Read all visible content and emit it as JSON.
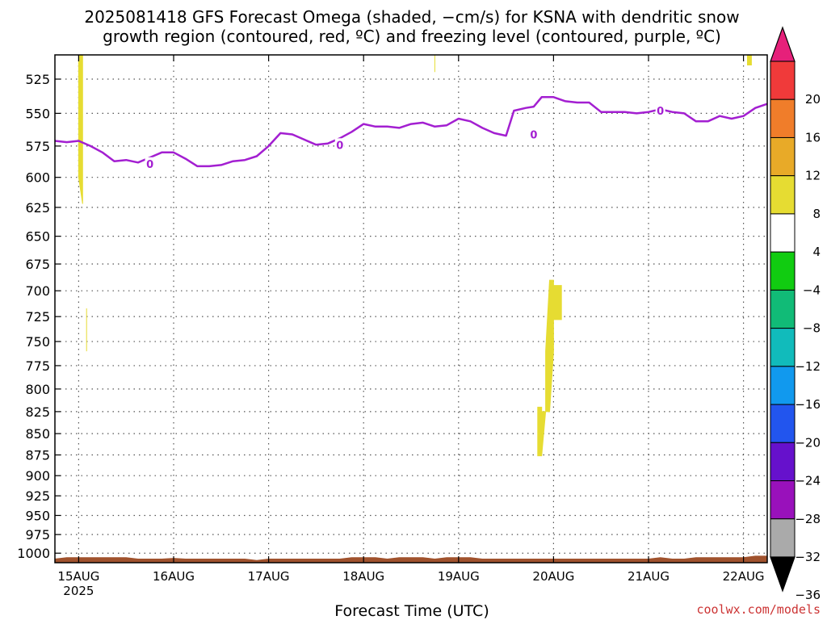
{
  "title": {
    "line1": "2025081418 GFS Forecast Omega (shaded, −cm/s) for KSNA with dendritic snow",
    "line2": "growth region (contoured, red, ºC) and freezing level (contoured, purple, ºC)"
  },
  "credit": "coolwx.com/models",
  "chart_data": {
    "type": "heatmap",
    "xlabel": "Forecast Time (UTC)",
    "ylabel": "",
    "x_domain": [
      "2025-08-14T18",
      "2025-08-22T06"
    ],
    "x_ticks": [
      {
        "t": "2025-08-15T00",
        "label": "15AUG",
        "sub": "2025"
      },
      {
        "t": "2025-08-16T00",
        "label": "16AUG",
        "sub": ""
      },
      {
        "t": "2025-08-17T00",
        "label": "17AUG",
        "sub": ""
      },
      {
        "t": "2025-08-18T00",
        "label": "18AUG",
        "sub": ""
      },
      {
        "t": "2025-08-19T00",
        "label": "19AUG",
        "sub": ""
      },
      {
        "t": "2025-08-20T00",
        "label": "20AUG",
        "sub": ""
      },
      {
        "t": "2025-08-21T00",
        "label": "21AUG",
        "sub": ""
      },
      {
        "t": "2025-08-22T00",
        "label": "22AUG",
        "sub": ""
      }
    ],
    "y_scale": "log",
    "y_unit": "hPa",
    "y_range": [
      1013,
      508
    ],
    "y_ticks": [
      525,
      550,
      575,
      600,
      625,
      650,
      675,
      700,
      725,
      750,
      775,
      800,
      825,
      850,
      875,
      900,
      925,
      950,
      975,
      1000
    ],
    "grid": true,
    "colorbar": {
      "unit": "-cm/s",
      "labels": [
        "20",
        "16",
        "12",
        "8",
        "4",
        "−4",
        "−8",
        "−12",
        "−16",
        "−20",
        "−24",
        "−28",
        "−32",
        "−36"
      ],
      "bands": [
        {
          "from": 16,
          "to": 20,
          "color": "#f03a3a"
        },
        {
          "from": 12,
          "to": 16,
          "color": "#f07d2a"
        },
        {
          "from": 8,
          "to": 12,
          "color": "#e8aa28"
        },
        {
          "from": 4,
          "to": 8,
          "color": "#e6dc32"
        },
        {
          "from": -4,
          "to": 4,
          "color": "#ffffff"
        },
        {
          "from": -8,
          "to": -4,
          "color": "#11cc11"
        },
        {
          "from": -12,
          "to": -8,
          "color": "#11bb77"
        },
        {
          "from": -16,
          "to": -12,
          "color": "#11bbbb"
        },
        {
          "from": -20,
          "to": -16,
          "color": "#1199ee"
        },
        {
          "from": -24,
          "to": -20,
          "color": "#2255ee"
        },
        {
          "from": -28,
          "to": -24,
          "color": "#6611cc"
        },
        {
          "from": -32,
          "to": -28,
          "color": "#9911bb"
        },
        {
          "from": -36,
          "to": -32,
          "color": "#aaaaaa"
        }
      ],
      "over_color": "#e6207a",
      "under_color": "#000000"
    },
    "omega_regions": [
      {
        "color": "#e6dc32",
        "points": [
          [
            "2025-08-15T00",
            508
          ],
          [
            "2025-08-15T01",
            508
          ],
          [
            "2025-08-15T01",
            550
          ],
          [
            "2025-08-15T01",
            605
          ],
          [
            "2025-08-15T01",
            622
          ],
          [
            "2025-08-15T00",
            600
          ],
          [
            "2025-08-15T00",
            560
          ]
        ]
      },
      {
        "color": "#e6dc32",
        "points": [
          [
            "2025-08-15T02",
            717
          ],
          [
            "2025-08-15T02",
            760
          ],
          [
            "2025-08-15T02",
            760
          ],
          [
            "2025-08-15T02",
            717
          ]
        ]
      },
      {
        "color": "#e6dc32",
        "points": [
          [
            "2025-08-18T18",
            508
          ],
          [
            "2025-08-18T18",
            508
          ],
          [
            "2025-08-18T18",
            520
          ],
          [
            "2025-08-18T18",
            520
          ]
        ]
      },
      {
        "color": "#e6dc32",
        "points": [
          [
            "2025-08-22T01",
            508
          ],
          [
            "2025-08-22T02",
            508
          ],
          [
            "2025-08-22T02",
            515
          ],
          [
            "2025-08-22T01",
            515
          ]
        ]
      },
      {
        "color": "#e6dc32",
        "points": [
          [
            "2025-08-19T20",
            820
          ],
          [
            "2025-08-19T21",
            820
          ],
          [
            "2025-08-19T21",
            825
          ],
          [
            "2025-08-19T22",
            825
          ],
          [
            "2025-08-19T22",
            760
          ],
          [
            "2025-08-19T23",
            690
          ],
          [
            "2025-08-20T00",
            690
          ],
          [
            "2025-08-20T00",
            695
          ],
          [
            "2025-08-20T02",
            695
          ],
          [
            "2025-08-20T02",
            728
          ],
          [
            "2025-08-20T00",
            728
          ],
          [
            "2025-08-20T00",
            760
          ],
          [
            "2025-08-19T23",
            825
          ],
          [
            "2025-08-19T23",
            825
          ],
          [
            "2025-08-19T22",
            825
          ],
          [
            "2025-08-19T21",
            876
          ],
          [
            "2025-08-19T20",
            876
          ]
        ]
      }
    ],
    "surface_band": {
      "color": "#a0522d",
      "top": [
        [
          "2025-08-14T18",
          1008
        ],
        [
          "2025-08-14T21",
          1006
        ],
        [
          "2025-08-15T12",
          1006
        ],
        [
          "2025-08-15T15",
          1008
        ],
        [
          "2025-08-15T21",
          1008
        ],
        [
          "2025-08-16T00",
          1007
        ],
        [
          "2025-08-16T03",
          1008
        ],
        [
          "2025-08-16T18",
          1008
        ],
        [
          "2025-08-16T21",
          1010
        ],
        [
          "2025-08-17T00",
          1008
        ],
        [
          "2025-08-17T18",
          1008
        ],
        [
          "2025-08-17T21",
          1006
        ],
        [
          "2025-08-18T03",
          1006
        ],
        [
          "2025-08-18T06",
          1008
        ],
        [
          "2025-08-18T09",
          1006
        ],
        [
          "2025-08-18T15",
          1006
        ],
        [
          "2025-08-18T18",
          1008
        ],
        [
          "2025-08-18T21",
          1006
        ],
        [
          "2025-08-19T03",
          1006
        ],
        [
          "2025-08-19T06",
          1008
        ],
        [
          "2025-08-21T00",
          1008
        ],
        [
          "2025-08-21T03",
          1006
        ],
        [
          "2025-08-21T06",
          1008
        ],
        [
          "2025-08-21T09",
          1008
        ],
        [
          "2025-08-21T12",
          1006
        ],
        [
          "2025-08-22T00",
          1006
        ],
        [
          "2025-08-22T03",
          1004
        ],
        [
          "2025-08-22T06",
          1004
        ]
      ]
    },
    "freezing_level": {
      "name": "0",
      "color": "#a31fd1",
      "values": [
        [
          "2025-08-14T18",
          571
        ],
        [
          "2025-08-14T21",
          572
        ],
        [
          "2025-08-15T00",
          571
        ],
        [
          "2025-08-15T03",
          575
        ],
        [
          "2025-08-15T06",
          580
        ],
        [
          "2025-08-15T09",
          587
        ],
        [
          "2025-08-15T12",
          586
        ],
        [
          "2025-08-15T15",
          588
        ],
        [
          "2025-08-15T18",
          584
        ],
        [
          "2025-08-15T21",
          580
        ],
        [
          "2025-08-16T00",
          580
        ],
        [
          "2025-08-16T03",
          585
        ],
        [
          "2025-08-16T06",
          591
        ],
        [
          "2025-08-16T09",
          591
        ],
        [
          "2025-08-16T12",
          590
        ],
        [
          "2025-08-16T15",
          587
        ],
        [
          "2025-08-16T18",
          586
        ],
        [
          "2025-08-16T21",
          583
        ],
        [
          "2025-08-17T00",
          575
        ],
        [
          "2025-08-17T03",
          565
        ],
        [
          "2025-08-17T06",
          566
        ],
        [
          "2025-08-17T09",
          570
        ],
        [
          "2025-08-17T12",
          574
        ],
        [
          "2025-08-17T15",
          573
        ],
        [
          "2025-08-17T18",
          569
        ],
        [
          "2025-08-17T21",
          564
        ],
        [
          "2025-08-18T00",
          558
        ],
        [
          "2025-08-18T03",
          560
        ],
        [
          "2025-08-18T06",
          560
        ],
        [
          "2025-08-18T09",
          561
        ],
        [
          "2025-08-18T12",
          558
        ],
        [
          "2025-08-18T15",
          557
        ],
        [
          "2025-08-18T18",
          560
        ],
        [
          "2025-08-18T21",
          559
        ],
        [
          "2025-08-19T00",
          554
        ],
        [
          "2025-08-19T03",
          556
        ],
        [
          "2025-08-19T06",
          561
        ],
        [
          "2025-08-19T09",
          565
        ],
        [
          "2025-08-19T12",
          567
        ],
        [
          "2025-08-19T14",
          548
        ],
        [
          "2025-08-19T17",
          546
        ],
        [
          "2025-08-19T19",
          545
        ],
        [
          "2025-08-19T21",
          538
        ],
        [
          "2025-08-20T00",
          538
        ],
        [
          "2025-08-20T03",
          541
        ],
        [
          "2025-08-20T06",
          542
        ],
        [
          "2025-08-20T09",
          542
        ],
        [
          "2025-08-20T12",
          549
        ],
        [
          "2025-08-20T15",
          549
        ],
        [
          "2025-08-20T18",
          549
        ],
        [
          "2025-08-20T21",
          550
        ],
        [
          "2025-08-21T00",
          549
        ],
        [
          "2025-08-21T03",
          547
        ],
        [
          "2025-08-21T06",
          549
        ],
        [
          "2025-08-21T09",
          550
        ],
        [
          "2025-08-21T12",
          556
        ],
        [
          "2025-08-21T15",
          556
        ],
        [
          "2025-08-21T18",
          552
        ],
        [
          "2025-08-21T21",
          554
        ],
        [
          "2025-08-22T00",
          552
        ],
        [
          "2025-08-22T03",
          546
        ],
        [
          "2025-08-22T06",
          543
        ]
      ],
      "labels": [
        [
          "2025-08-15T18",
          589
        ],
        [
          "2025-08-17T18",
          574
        ],
        [
          "2025-08-19T19",
          566
        ],
        [
          "2025-08-21T03",
          548
        ]
      ]
    }
  }
}
